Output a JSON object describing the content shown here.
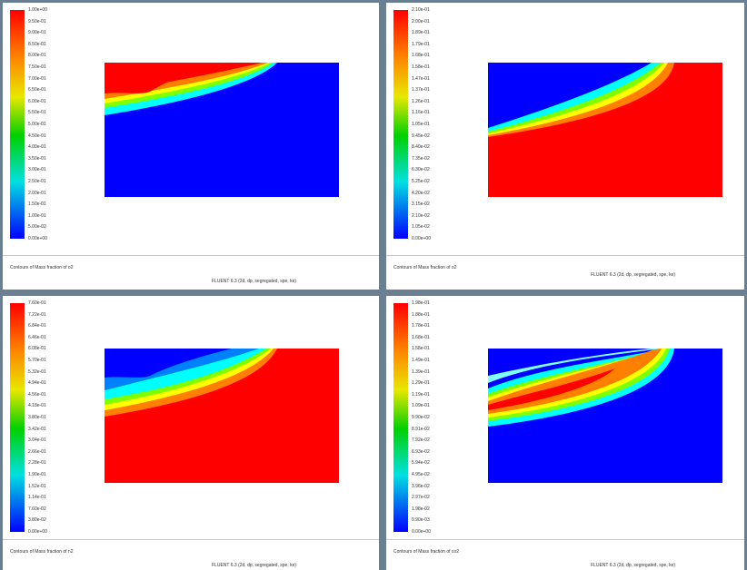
{
  "panels": [
    {
      "id": "p1",
      "legend": [
        "1.00e+00",
        "9.50e-01",
        "9.00e-01",
        "8.50e-01",
        "8.00e-01",
        "7.50e-01",
        "7.00e-01",
        "6.50e-01",
        "6.00e-01",
        "5.50e-01",
        "5.00e-01",
        "4.50e-01",
        "4.00e-01",
        "3.50e-01",
        "3.00e-01",
        "2.50e-01",
        "2.00e-01",
        "1.50e-01",
        "1.00e-01",
        "5.00e-02",
        "0.00e+00"
      ],
      "title": "Contours of Mass fraction of o2",
      "fluent": "FLUENT 6.3 (2d, dp, segregated, spe, ke)"
    },
    {
      "id": "p2",
      "legend": [
        "2.10e-01",
        "2.00e-01",
        "1.89e-01",
        "1.79e-01",
        "1.68e-01",
        "1.58e-01",
        "1.47e-01",
        "1.37e-01",
        "1.26e-01",
        "1.16e-01",
        "1.05e-01",
        "9.45e-02",
        "8.40e-02",
        "7.35e-02",
        "6.30e-02",
        "5.25e-02",
        "4.20e-02",
        "3.15e-02",
        "2.10e-02",
        "1.05e-02",
        "0.00e+00"
      ],
      "title": "Contours of Mass fraction of o2",
      "fluent": "FLUENT 6.3 (2d, dp, segregated, spe, ke)"
    },
    {
      "id": "p3",
      "legend": [
        "7.60e-01",
        "7.22e-01",
        "6.84e-01",
        "6.46e-01",
        "6.08e-01",
        "5.70e-01",
        "5.32e-01",
        "4.94e-01",
        "4.56e-01",
        "4.18e-01",
        "3.80e-01",
        "3.42e-01",
        "3.04e-01",
        "2.66e-01",
        "2.28e-01",
        "1.90e-01",
        "1.52e-01",
        "1.14e-01",
        "7.60e-02",
        "3.80e-02",
        "0.00e+00"
      ],
      "title": "Contours of Mass fraction of n2",
      "fluent": "FLUENT 6.3 (2d, dp, segregated, spe, ke)"
    },
    {
      "id": "p4",
      "legend": [
        "1.98e-01",
        "1.88e-01",
        "1.78e-01",
        "1.68e-01",
        "1.58e-01",
        "1.49e-01",
        "1.39e-01",
        "1.29e-01",
        "1.19e-01",
        "1.09e-01",
        "9.90e-02",
        "8.91e-02",
        "7.92e-02",
        "6.93e-02",
        "5.94e-02",
        "4.95e-02",
        "3.96e-02",
        "2.97e-02",
        "1.98e-02",
        "9.90e-03",
        "0.00e+00"
      ],
      "title": "Contours of Mass fraction of co2",
      "fluent": "FLUENT 6.3 (2d, dp, segregated, spe, ke)"
    }
  ]
}
